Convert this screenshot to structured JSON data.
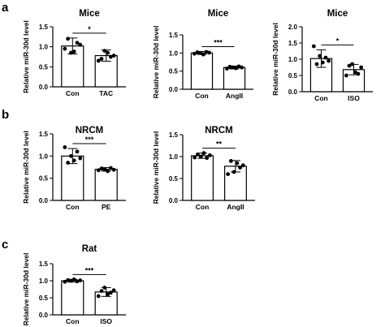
{
  "panels": [
    {
      "letter": "a",
      "x": 0,
      "y": 0
    },
    {
      "letter": "b",
      "x": 0,
      "y": 0
    },
    {
      "letter": "c",
      "x": 0,
      "y": 0
    }
  ],
  "chart_data": [
    {
      "type": "bar",
      "panel": "a",
      "title": "Mice",
      "ylabel": "Relative miR-30d level",
      "categories": [
        "Con",
        "TAC"
      ],
      "values": [
        1.02,
        0.78
      ],
      "errors": [
        0.2,
        0.14
      ],
      "points": [
        [
          0.95,
          1.2,
          0.85,
          0.88,
          1.1,
          1.05
        ],
        [
          0.65,
          0.7,
          0.9,
          0.85,
          0.75,
          0.78
        ]
      ],
      "fills": [
        "#ffffff",
        "#ffffff"
      ],
      "significance": "*",
      "ylim": [
        0,
        1.5
      ],
      "yticks": [
        0.0,
        0.5,
        1.0,
        1.5
      ]
    },
    {
      "type": "bar",
      "panel": "a",
      "title": "Mice",
      "ylabel": "Relative miR-30d level",
      "categories": [
        "Con",
        "AngII"
      ],
      "values": [
        1.0,
        0.6
      ],
      "errors": [
        0.04,
        0.04
      ],
      "points": [
        [
          0.98,
          1.02,
          1.0,
          0.96,
          1.03,
          1.01
        ],
        [
          0.57,
          0.62,
          0.6,
          0.58,
          0.63,
          0.6
        ]
      ],
      "fills": [
        "#ffffff",
        "#ffffff"
      ],
      "significance": "***",
      "ylim": [
        0,
        1.5
      ],
      "yticks": [
        0.0,
        0.5,
        1.0,
        1.5
      ]
    },
    {
      "type": "bar",
      "panel": "a",
      "title": "Mice",
      "ylabel": "Relative miR-30d level",
      "categories": [
        "Con",
        "ISO"
      ],
      "values": [
        1.02,
        0.68
      ],
      "errors": [
        0.27,
        0.16
      ],
      "points": [
        [
          1.4,
          0.85,
          1.1,
          0.9,
          1.05,
          0.95
        ],
        [
          0.5,
          0.8,
          0.85,
          0.6,
          0.55,
          0.75
        ]
      ],
      "fills": [
        "#ffffff",
        "#ffffff"
      ],
      "significance": "*",
      "ylim": [
        0,
        2.0
      ],
      "yticks": [
        0.0,
        0.5,
        1.0,
        1.5,
        2.0
      ]
    },
    {
      "type": "bar",
      "panel": "b",
      "title": "NRCM",
      "ylabel": "Relative miR-30d level",
      "categories": [
        "Con",
        "PE"
      ],
      "values": [
        1.0,
        0.7
      ],
      "errors": [
        0.17,
        0.04
      ],
      "points": [
        [
          1.2,
          0.85,
          1.0,
          0.9,
          1.1,
          0.95
        ],
        [
          0.68,
          0.72,
          0.7,
          0.66,
          0.73,
          0.69
        ]
      ],
      "fills": [
        "#ffffff",
        "#ffffff"
      ],
      "significance": "***",
      "ylim": [
        0,
        1.5
      ],
      "yticks": [
        0.0,
        0.5,
        1.0,
        1.5
      ]
    },
    {
      "type": "bar",
      "panel": "b",
      "title": "NRCM",
      "ylabel": "Relative miR-30d level",
      "categories": [
        "Con",
        "AngII"
      ],
      "values": [
        1.02,
        0.78
      ],
      "errors": [
        0.06,
        0.13
      ],
      "points": [
        [
          0.98,
          1.05,
          1.0,
          1.08,
          0.97,
          1.03
        ],
        [
          0.6,
          0.9,
          0.65,
          0.85,
          0.75,
          0.8
        ]
      ],
      "fills": [
        "#ffffff",
        "#ffffff"
      ],
      "significance": "**",
      "ylim": [
        0,
        1.5
      ],
      "yticks": [
        0.0,
        0.5,
        1.0,
        1.5
      ]
    },
    {
      "type": "bar",
      "panel": "c",
      "title": "Rat",
      "ylabel": "Relative miR-30d level",
      "categories": [
        "Con",
        "ISO"
      ],
      "values": [
        1.0,
        0.67
      ],
      "errors": [
        0.04,
        0.13
      ],
      "points": [
        [
          0.97,
          1.02,
          1.0,
          1.04,
          0.98,
          1.01
        ],
        [
          0.55,
          0.7,
          0.8,
          0.6,
          0.65,
          0.72
        ]
      ],
      "fills": [
        "#ffffff",
        "#ffffff"
      ],
      "significance": "***",
      "ylim": [
        0,
        1.5
      ],
      "yticks": [
        0.0,
        0.5,
        1.0,
        1.5
      ]
    }
  ]
}
